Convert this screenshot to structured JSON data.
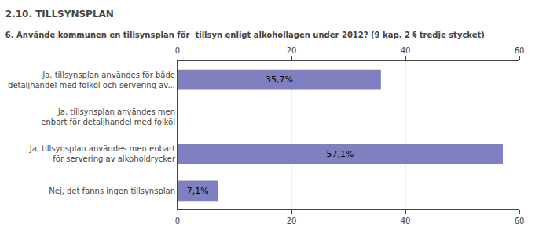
{
  "chart_data": {
    "type": "bar",
    "orientation": "horizontal",
    "title": "2.10. TILLSYNSPLAN",
    "subtitle": "6. Använde kommunen en tillsynsplan för  tillsyn enligt alkohollagen under 2012? (9 kap. 2 § tredje stycket)",
    "categories": [
      "Ja, tillsynsplan användes för både\ndetaljhandel med folköl och servering av...",
      "Ja, tillsynsplan användes men\nenbart för detaljhandel med folköl",
      "Ja, tillsynsplan användes men enbart\nför servering av alkoholdrycker",
      "Nej, det fanns ingen tillsynsplan"
    ],
    "values": [
      35.7,
      0.0,
      57.1,
      7.1
    ],
    "value_labels": [
      "35,7%",
      null,
      "57,1%",
      "7,1%"
    ],
    "data_labels": true,
    "color": "#8080c0",
    "xlim": [
      0,
      60
    ],
    "xticks": [
      0,
      20,
      40,
      60
    ],
    "grid": true
  }
}
